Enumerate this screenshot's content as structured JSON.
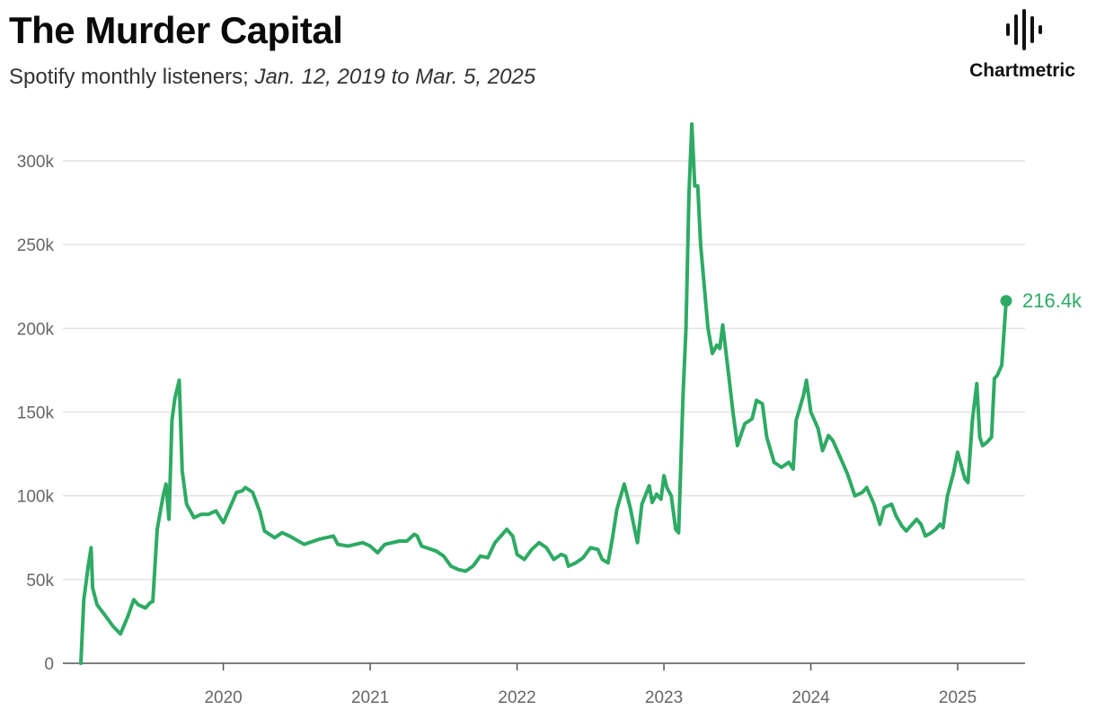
{
  "header": {
    "title": "The Murder Capital",
    "subtitle_prefix": "Spotify monthly listeners; ",
    "subtitle_range": "Jan. 12, 2019 to Mar. 5, 2025"
  },
  "brand": {
    "name": "Chartmetric",
    "icon": "soundwave-bars-icon"
  },
  "chart_data": {
    "type": "line",
    "title": "The Murder Capital",
    "subtitle": "Spotify monthly listeners; Jan. 12, 2019 to Mar. 5, 2025",
    "xlabel": "",
    "ylabel": "",
    "color": "#2eaa64",
    "xlim": [
      2019.03,
      2025.2
    ],
    "ylim": [
      0,
      320000
    ],
    "yticks": [
      0,
      50000,
      100000,
      150000,
      200000,
      250000,
      300000
    ],
    "ytick_labels": [
      "0",
      "50k",
      "100k",
      "150k",
      "200k",
      "250k",
      "300k"
    ],
    "xticks": [
      2020,
      2021,
      2022,
      2023,
      2024,
      2025
    ],
    "xtick_labels": [
      "2020",
      "2021",
      "2022",
      "2023",
      "2024",
      "2025"
    ],
    "grid": true,
    "end_label": "216.4k",
    "series": [
      {
        "name": "Spotify monthly listeners",
        "points": [
          [
            2019.03,
            0
          ],
          [
            2019.05,
            38000
          ],
          [
            2019.08,
            58000
          ],
          [
            2019.1,
            69000
          ],
          [
            2019.11,
            45000
          ],
          [
            2019.14,
            35000
          ],
          [
            2019.2,
            28000
          ],
          [
            2019.25,
            22000
          ],
          [
            2019.3,
            17500
          ],
          [
            2019.35,
            28000
          ],
          [
            2019.39,
            38000
          ],
          [
            2019.42,
            35000
          ],
          [
            2019.47,
            33000
          ],
          [
            2019.5,
            36000
          ],
          [
            2019.52,
            37000
          ],
          [
            2019.55,
            80000
          ],
          [
            2019.59,
            100000
          ],
          [
            2019.61,
            107000
          ],
          [
            2019.63,
            86000
          ],
          [
            2019.65,
            145000
          ],
          [
            2019.67,
            158000
          ],
          [
            2019.7,
            169000
          ],
          [
            2019.72,
            115000
          ],
          [
            2019.75,
            95000
          ],
          [
            2019.8,
            87000
          ],
          [
            2019.85,
            89000
          ],
          [
            2019.9,
            89000
          ],
          [
            2019.95,
            91000
          ],
          [
            2020.0,
            84000
          ],
          [
            2020.05,
            94000
          ],
          [
            2020.09,
            102000
          ],
          [
            2020.13,
            103000
          ],
          [
            2020.15,
            105000
          ],
          [
            2020.2,
            102000
          ],
          [
            2020.25,
            90000
          ],
          [
            2020.28,
            79000
          ],
          [
            2020.35,
            75000
          ],
          [
            2020.4,
            78000
          ],
          [
            2020.45,
            76000
          ],
          [
            2020.55,
            71000
          ],
          [
            2020.65,
            74000
          ],
          [
            2020.75,
            76000
          ],
          [
            2020.78,
            71000
          ],
          [
            2020.85,
            70000
          ],
          [
            2020.9,
            71000
          ],
          [
            2020.95,
            72000
          ],
          [
            2021.0,
            70000
          ],
          [
            2021.05,
            66000
          ],
          [
            2021.1,
            71000
          ],
          [
            2021.2,
            73000
          ],
          [
            2021.25,
            73000
          ],
          [
            2021.3,
            77000
          ],
          [
            2021.32,
            76000
          ],
          [
            2021.35,
            70000
          ],
          [
            2021.45,
            67000
          ],
          [
            2021.5,
            64000
          ],
          [
            2021.55,
            58000
          ],
          [
            2021.6,
            56000
          ],
          [
            2021.65,
            55000
          ],
          [
            2021.7,
            58000
          ],
          [
            2021.75,
            64000
          ],
          [
            2021.8,
            63000
          ],
          [
            2021.85,
            72000
          ],
          [
            2021.9,
            77000
          ],
          [
            2021.93,
            80000
          ],
          [
            2021.97,
            76000
          ],
          [
            2022.0,
            65000
          ],
          [
            2022.05,
            62000
          ],
          [
            2022.1,
            68000
          ],
          [
            2022.15,
            72000
          ],
          [
            2022.2,
            69000
          ],
          [
            2022.25,
            62000
          ],
          [
            2022.3,
            65000
          ],
          [
            2022.33,
            64000
          ],
          [
            2022.35,
            58000
          ],
          [
            2022.4,
            60000
          ],
          [
            2022.45,
            63000
          ],
          [
            2022.5,
            69000
          ],
          [
            2022.55,
            68000
          ],
          [
            2022.58,
            62000
          ],
          [
            2022.62,
            60000
          ],
          [
            2022.65,
            75000
          ],
          [
            2022.68,
            92000
          ],
          [
            2022.73,
            107000
          ],
          [
            2022.77,
            93000
          ],
          [
            2022.8,
            80000
          ],
          [
            2022.82,
            72000
          ],
          [
            2022.85,
            95000
          ],
          [
            2022.9,
            106000
          ],
          [
            2022.92,
            96000
          ],
          [
            2022.95,
            101000
          ],
          [
            2022.98,
            98000
          ],
          [
            2023.0,
            112000
          ],
          [
            2023.02,
            105000
          ],
          [
            2023.05,
            100000
          ],
          [
            2023.08,
            80000
          ],
          [
            2023.1,
            78000
          ],
          [
            2023.13,
            160000
          ],
          [
            2023.15,
            200000
          ],
          [
            2023.17,
            280000
          ],
          [
            2023.19,
            322000
          ],
          [
            2023.21,
            285000
          ],
          [
            2023.23,
            285000
          ],
          [
            2023.25,
            250000
          ],
          [
            2023.28,
            220000
          ],
          [
            2023.3,
            200000
          ],
          [
            2023.33,
            185000
          ],
          [
            2023.36,
            190000
          ],
          [
            2023.38,
            188000
          ],
          [
            2023.4,
            202000
          ],
          [
            2023.43,
            180000
          ],
          [
            2023.47,
            150000
          ],
          [
            2023.5,
            130000
          ],
          [
            2023.55,
            143000
          ],
          [
            2023.6,
            146000
          ],
          [
            2023.63,
            157000
          ],
          [
            2023.67,
            155000
          ],
          [
            2023.7,
            135000
          ],
          [
            2023.75,
            120000
          ],
          [
            2023.8,
            117000
          ],
          [
            2023.85,
            120000
          ],
          [
            2023.88,
            116000
          ],
          [
            2023.9,
            145000
          ],
          [
            2023.95,
            160000
          ],
          [
            2023.97,
            169000
          ],
          [
            2024.0,
            150000
          ],
          [
            2024.05,
            140000
          ],
          [
            2024.08,
            127000
          ],
          [
            2024.12,
            136000
          ],
          [
            2024.15,
            133000
          ],
          [
            2024.2,
            123000
          ],
          [
            2024.25,
            113000
          ],
          [
            2024.3,
            100000
          ],
          [
            2024.35,
            102000
          ],
          [
            2024.38,
            105000
          ],
          [
            2024.4,
            101000
          ],
          [
            2024.43,
            95000
          ],
          [
            2024.47,
            83000
          ],
          [
            2024.5,
            93000
          ],
          [
            2024.55,
            95000
          ],
          [
            2024.58,
            88000
          ],
          [
            2024.62,
            82000
          ],
          [
            2024.65,
            79000
          ],
          [
            2024.7,
            84000
          ],
          [
            2024.72,
            86000
          ],
          [
            2024.75,
            83000
          ],
          [
            2024.78,
            76000
          ],
          [
            2024.82,
            78000
          ],
          [
            2024.85,
            80000
          ],
          [
            2024.88,
            83000
          ],
          [
            2024.9,
            81000
          ],
          [
            2024.93,
            100000
          ],
          [
            2024.97,
            113000
          ],
          [
            2025.0,
            126000
          ],
          [
            2025.03,
            116000
          ],
          [
            2025.05,
            110000
          ],
          [
            2025.07,
            108000
          ],
          [
            2025.1,
            145000
          ],
          [
            2025.13,
            167000
          ],
          [
            2025.15,
            135000
          ],
          [
            2025.17,
            130000
          ],
          [
            2025.2,
            132000
          ],
          [
            2025.23,
            135000
          ],
          [
            2025.25,
            170000
          ],
          [
            2025.27,
            172000
          ],
          [
            2025.3,
            178000
          ],
          [
            2025.33,
            216400
          ]
        ]
      }
    ]
  }
}
